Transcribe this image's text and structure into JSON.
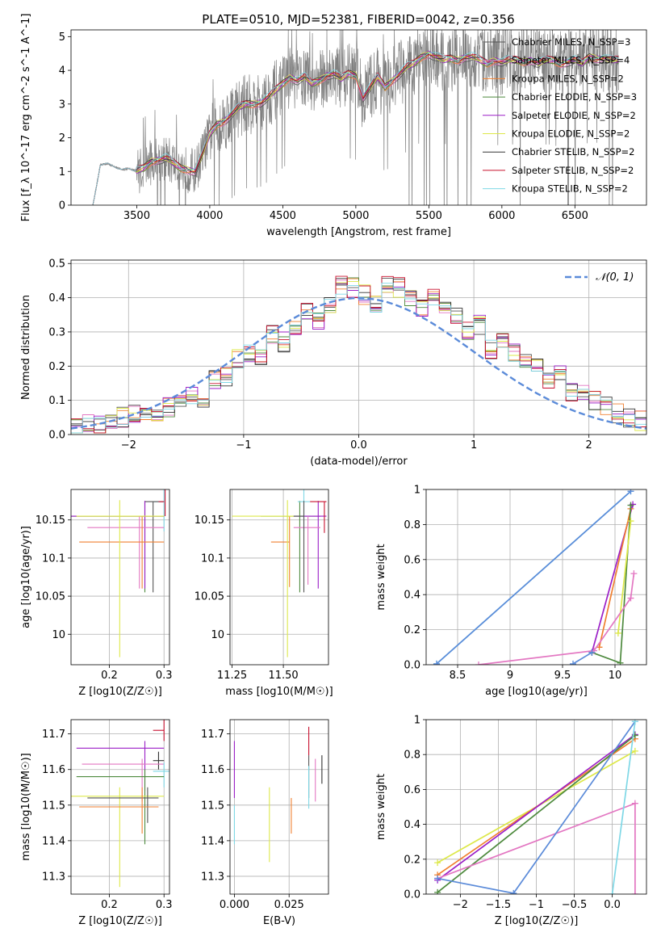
{
  "figure": {
    "title": "PLATE=0510, MJD=52381, FIBERID=0042, z=0.356"
  },
  "chart_data": [
    {
      "id": "spectrum",
      "type": "line",
      "title": "PLATE=0510, MJD=52381, FIBERID=0042, z=0.356",
      "xlabel": "wavelength [Angstrom, rest frame]",
      "ylabel": "Flux [f_λ 10^-17 erg cm^-2 s^-1 A^-1]",
      "xlim": [
        3050,
        6990
      ],
      "ylim": [
        0,
        5.2
      ],
      "xticks": [
        3500,
        4000,
        4500,
        5000,
        5500,
        6000,
        6500
      ],
      "yticks": [
        0,
        1,
        2,
        3,
        4,
        5
      ],
      "grid": false,
      "legend_position": "top-right",
      "data_trend": {
        "x": [
          3200,
          3250,
          3300,
          3350,
          3400,
          3450,
          3500,
          3550,
          3600,
          3650,
          3700,
          3750,
          3800,
          3850,
          3900,
          3950,
          4000,
          4050,
          4100,
          4150,
          4200,
          4250,
          4300,
          4350,
          4400,
          4450,
          4500,
          4550,
          4600,
          4650,
          4700,
          4750,
          4800,
          4850,
          4900,
          4950,
          5000,
          5050,
          5100,
          5150,
          5200,
          5250,
          5300,
          5350,
          5400,
          5450,
          5500,
          5550,
          5600,
          5650,
          5700,
          5750,
          5800,
          5850,
          5900,
          5950,
          6000,
          6050,
          6100,
          6150,
          6200,
          6250,
          6300,
          6350,
          6400,
          6450,
          6500,
          6550,
          6600,
          6650,
          6700,
          6750,
          6800
        ],
        "y": [
          0.0,
          1.2,
          1.22,
          1.15,
          1.05,
          1.08,
          1.02,
          1.1,
          1.3,
          1.35,
          1.4,
          1.25,
          1.1,
          1.05,
          1.0,
          1.5,
          2.1,
          2.4,
          2.5,
          2.7,
          2.9,
          3.0,
          3.0,
          3.05,
          3.2,
          3.4,
          3.6,
          3.8,
          3.7,
          3.8,
          3.6,
          3.7,
          3.85,
          3.9,
          3.75,
          3.9,
          3.85,
          3.2,
          3.5,
          3.8,
          3.5,
          3.7,
          3.9,
          4.1,
          4.2,
          4.4,
          4.5,
          4.4,
          4.3,
          4.35,
          4.3,
          4.4,
          4.4,
          4.3,
          4.2,
          4.3,
          4.25,
          4.3,
          4.3,
          4.25,
          4.3,
          4.2,
          4.3,
          4.3,
          4.2,
          4.25,
          4.3,
          4.2,
          4.4,
          4.35,
          4.35,
          4.3,
          4.3
        ]
      },
      "series": [
        {
          "name": "Chabrier MILES, N_SSP=3",
          "color": "#555555"
        },
        {
          "name": "Salpeter MILES, N_SSP=4",
          "color": "#e377c2"
        },
        {
          "name": "Kroupa MILES, N_SSP=2",
          "color": "#f08030"
        },
        {
          "name": "Chabrier ELODIE, N_SSP=3",
          "color": "#4e8a3e"
        },
        {
          "name": "Salpeter ELODIE, N_SSP=2",
          "color": "#9b1fc7"
        },
        {
          "name": "Kroupa ELODIE, N_SSP=2",
          "color": "#dde84a"
        },
        {
          "name": "Chabrier STELIB, N_SSP=2",
          "color": "#333333"
        },
        {
          "name": "Salpeter STELIB, N_SSP=2",
          "color": "#c8102e"
        },
        {
          "name": "Kroupa STELIB, N_SSP=2",
          "color": "#7fd8e6"
        }
      ]
    },
    {
      "id": "residuals",
      "type": "line",
      "xlabel": "(data-model)/error",
      "ylabel": "Normed distribution",
      "xlim": [
        -2.5,
        2.5
      ],
      "ylim": [
        0,
        0.51
      ],
      "xticks": [
        -2,
        -1,
        0,
        1,
        2
      ],
      "yticks": [
        0.0,
        0.1,
        0.2,
        0.3,
        0.4,
        0.5
      ],
      "grid": true,
      "legend_position": "top-right",
      "gaussian_label": "𝒩(0, 1)",
      "gaussian_color": "#5b8bd9",
      "hist_bins": [
        -2.5,
        -2.4,
        -2.3,
        -2.2,
        -2.1,
        -2.0,
        -1.9,
        -1.8,
        -1.7,
        -1.6,
        -1.5,
        -1.4,
        -1.3,
        -1.2,
        -1.1,
        -1.0,
        -0.9,
        -0.8,
        -0.7,
        -0.6,
        -0.5,
        -0.4,
        -0.3,
        -0.2,
        -0.1,
        0.0,
        0.1,
        0.2,
        0.3,
        0.4,
        0.5,
        0.6,
        0.7,
        0.8,
        0.9,
        1.0,
        1.1,
        1.2,
        1.3,
        1.4,
        1.5,
        1.6,
        1.7,
        1.8,
        1.9,
        2.0,
        2.1,
        2.2,
        2.3,
        2.4
      ],
      "hist_values": [
        0.025,
        0.03,
        0.03,
        0.04,
        0.05,
        0.06,
        0.05,
        0.07,
        0.08,
        0.09,
        0.12,
        0.11,
        0.16,
        0.17,
        0.22,
        0.24,
        0.22,
        0.29,
        0.27,
        0.31,
        0.36,
        0.33,
        0.38,
        0.44,
        0.43,
        0.41,
        0.38,
        0.44,
        0.43,
        0.4,
        0.37,
        0.4,
        0.36,
        0.35,
        0.3,
        0.32,
        0.25,
        0.27,
        0.24,
        0.22,
        0.2,
        0.16,
        0.18,
        0.12,
        0.13,
        0.1,
        0.08,
        0.06,
        0.05,
        0.04
      ]
    },
    {
      "id": "age-vs-z",
      "type": "scatter",
      "xlabel": "Z [log10(Z/Z☉)]",
      "ylabel": "age [log10(age/yr)]",
      "xlim": [
        0.13,
        0.31
      ],
      "ylim": [
        9.96,
        10.19
      ],
      "xticks": [
        0.2,
        0.3
      ],
      "yticks": [
        10.0,
        10.05,
        10.1,
        10.15
      ],
      "grid": true
    },
    {
      "id": "age-vs-mass",
      "type": "scatter",
      "xlabel": "mass [log10(M/M☉)]",
      "ylabel": "",
      "xlim": [
        11.24,
        11.72
      ],
      "ylim": [
        9.96,
        10.19
      ],
      "xticks": [
        11.25,
        11.5
      ],
      "xtick_labels": [
        "11.25",
        "11.50"
      ],
      "yticks": [
        10.0,
        10.05,
        10.1,
        10.15
      ],
      "grid": true
    },
    {
      "id": "mass-weight-vs-age",
      "type": "line",
      "xlabel": "age [log10(age/yr)]",
      "ylabel": "mass weight",
      "xlim": [
        8.2,
        10.3
      ],
      "ylim": [
        0,
        1.0
      ],
      "xticks": [
        8.5,
        9.0,
        9.5,
        10.0
      ],
      "yticks": [
        0.0,
        0.2,
        0.4,
        0.6,
        0.8,
        1.0
      ],
      "grid": true,
      "series": [
        {
          "color": "#7fd8e6",
          "x": [
            8.3,
            10.15
          ],
          "y": [
            0.005,
            0.99
          ]
        },
        {
          "color": "#5b8bd9",
          "x": [
            8.3,
            10.15
          ],
          "y": [
            0.005,
            0.99
          ]
        },
        {
          "color": "#9b1fc7",
          "x": [
            9.78,
            10.17
          ],
          "y": [
            0.07,
            0.915
          ]
        },
        {
          "color": "#f08030",
          "x": [
            9.85,
            10.15
          ],
          "y": [
            0.1,
            0.89
          ]
        },
        {
          "color": "#4e8a3e",
          "x": [
            9.78,
            10.05,
            10.15
          ],
          "y": [
            0.07,
            0.01,
            0.91
          ]
        },
        {
          "color": "#dde84a",
          "x": [
            10.03,
            10.15
          ],
          "y": [
            0.18,
            0.82
          ]
        },
        {
          "color": "#e377c2",
          "x": [
            8.7,
            9.8,
            10.15,
            10.18
          ],
          "y": [
            0.0,
            0.08,
            0.38,
            0.52
          ]
        },
        {
          "color": "#5b8bd9",
          "x": [
            9.6,
            9.78
          ],
          "y": [
            0.005,
            0.07
          ]
        }
      ]
    },
    {
      "id": "mass-vs-z",
      "type": "scatter",
      "xlabel": "Z [log10(Z/Z☉)]",
      "ylabel": "mass [log10(M/M☉)]",
      "xlim": [
        0.13,
        0.31
      ],
      "ylim": [
        11.25,
        11.74
      ],
      "xticks": [
        0.2,
        0.3
      ],
      "yticks": [
        11.3,
        11.4,
        11.5,
        11.6,
        11.7
      ],
      "grid": true
    },
    {
      "id": "mass-vs-ebv",
      "type": "scatter",
      "xlabel": "E(B-V)",
      "ylabel": "",
      "xlim": [
        -0.002,
        0.043
      ],
      "ylim": [
        11.25,
        11.74
      ],
      "xticks": [
        0.0,
        0.025
      ],
      "xtick_labels": [
        "0.000",
        "0.025"
      ],
      "yticks": [
        11.3,
        11.4,
        11.5,
        11.6,
        11.7
      ],
      "grid": true
    },
    {
      "id": "mass-weight-vs-z",
      "type": "line",
      "xlabel": "Z [log10(Z/Z☉)]",
      "ylabel": "mass weight",
      "xlim": [
        -2.45,
        0.45
      ],
      "ylim": [
        0,
        1.0
      ],
      "xticks": [
        -2.0,
        -1.5,
        -1.0,
        -0.5,
        0.0
      ],
      "yticks": [
        0.0,
        0.2,
        0.4,
        0.6,
        0.8,
        1.0
      ],
      "grid": true,
      "series": [
        {
          "color": "#dde84a",
          "x": [
            -2.3,
            0.3
          ],
          "y": [
            0.18,
            0.82
          ]
        },
        {
          "color": "#f08030",
          "x": [
            -2.3,
            0.3
          ],
          "y": [
            0.11,
            0.89
          ]
        },
        {
          "color": "#9b1fc7",
          "x": [
            -2.3,
            0.3
          ],
          "y": [
            0.08,
            0.915
          ]
        },
        {
          "color": "#4e8a3e",
          "x": [
            -2.3,
            0.3
          ],
          "y": [
            0.01,
            0.91
          ]
        },
        {
          "color": "#e377c2",
          "x": [
            -2.3,
            0.3,
            0.3
          ],
          "y": [
            0.09,
            0.52,
            0.0
          ]
        },
        {
          "color": "#5b8bd9",
          "x": [
            -2.3,
            -1.3,
            0.3
          ],
          "y": [
            0.09,
            0.005,
            0.99
          ]
        },
        {
          "color": "#7fd8e6",
          "x": [
            0.0,
            0.3
          ],
          "y": [
            0.0,
            0.99
          ]
        }
      ]
    }
  ]
}
